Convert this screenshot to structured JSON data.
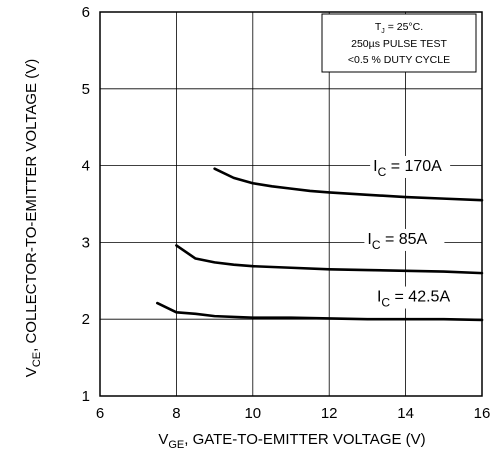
{
  "chart_data": {
    "type": "line",
    "x_ticks": [
      "6",
      "8",
      "10",
      "12",
      "14",
      "16"
    ],
    "y_ticks": [
      "1",
      "2",
      "3",
      "4",
      "5",
      "6"
    ],
    "xlim": [
      6,
      16
    ],
    "ylim": [
      1,
      6
    ],
    "grid": true,
    "xlabel": {
      "main": "V",
      "sub": "GE",
      "rest": ", GATE-TO-EMITTER VOLTAGE (V)"
    },
    "ylabel": {
      "main": "V",
      "sub": "CE",
      "rest": ", COLLECTOR-TO-EMITTER VOLTAGE (V)"
    },
    "note": {
      "line1_main": "T",
      "line1_sub": "J",
      "line1_rest": " = 25°C.",
      "line2": "250µs PULSE TEST",
      "line3": "<0.5 % DUTY CYCLE"
    },
    "series": [
      {
        "label_main": "I",
        "label_sub": "C",
        "label_rest": " = 170A",
        "x": [
          9.0,
          9.5,
          10.0,
          10.5,
          11.0,
          11.5,
          12.0,
          13.0,
          14.0,
          15.0,
          16.0
        ],
        "y": [
          3.96,
          3.84,
          3.77,
          3.73,
          3.7,
          3.67,
          3.65,
          3.62,
          3.59,
          3.57,
          3.55
        ]
      },
      {
        "label_main": "I",
        "label_sub": "C",
        "label_rest": " = 85A",
        "x": [
          8.0,
          8.5,
          9.0,
          9.5,
          10.0,
          11.0,
          12.0,
          13.0,
          14.0,
          15.0,
          16.0
        ],
        "y": [
          2.96,
          2.79,
          2.74,
          2.71,
          2.69,
          2.67,
          2.65,
          2.64,
          2.63,
          2.62,
          2.6
        ]
      },
      {
        "label_main": "I",
        "label_sub": "C",
        "label_rest": " = 42.5A",
        "x": [
          7.5,
          8.0,
          8.5,
          9.0,
          10.0,
          11.0,
          12.0,
          13.0,
          14.0,
          15.0,
          16.0
        ],
        "y": [
          2.21,
          2.09,
          2.07,
          2.04,
          2.02,
          2.02,
          2.01,
          2.0,
          2.0,
          2.0,
          1.99
        ]
      }
    ]
  }
}
